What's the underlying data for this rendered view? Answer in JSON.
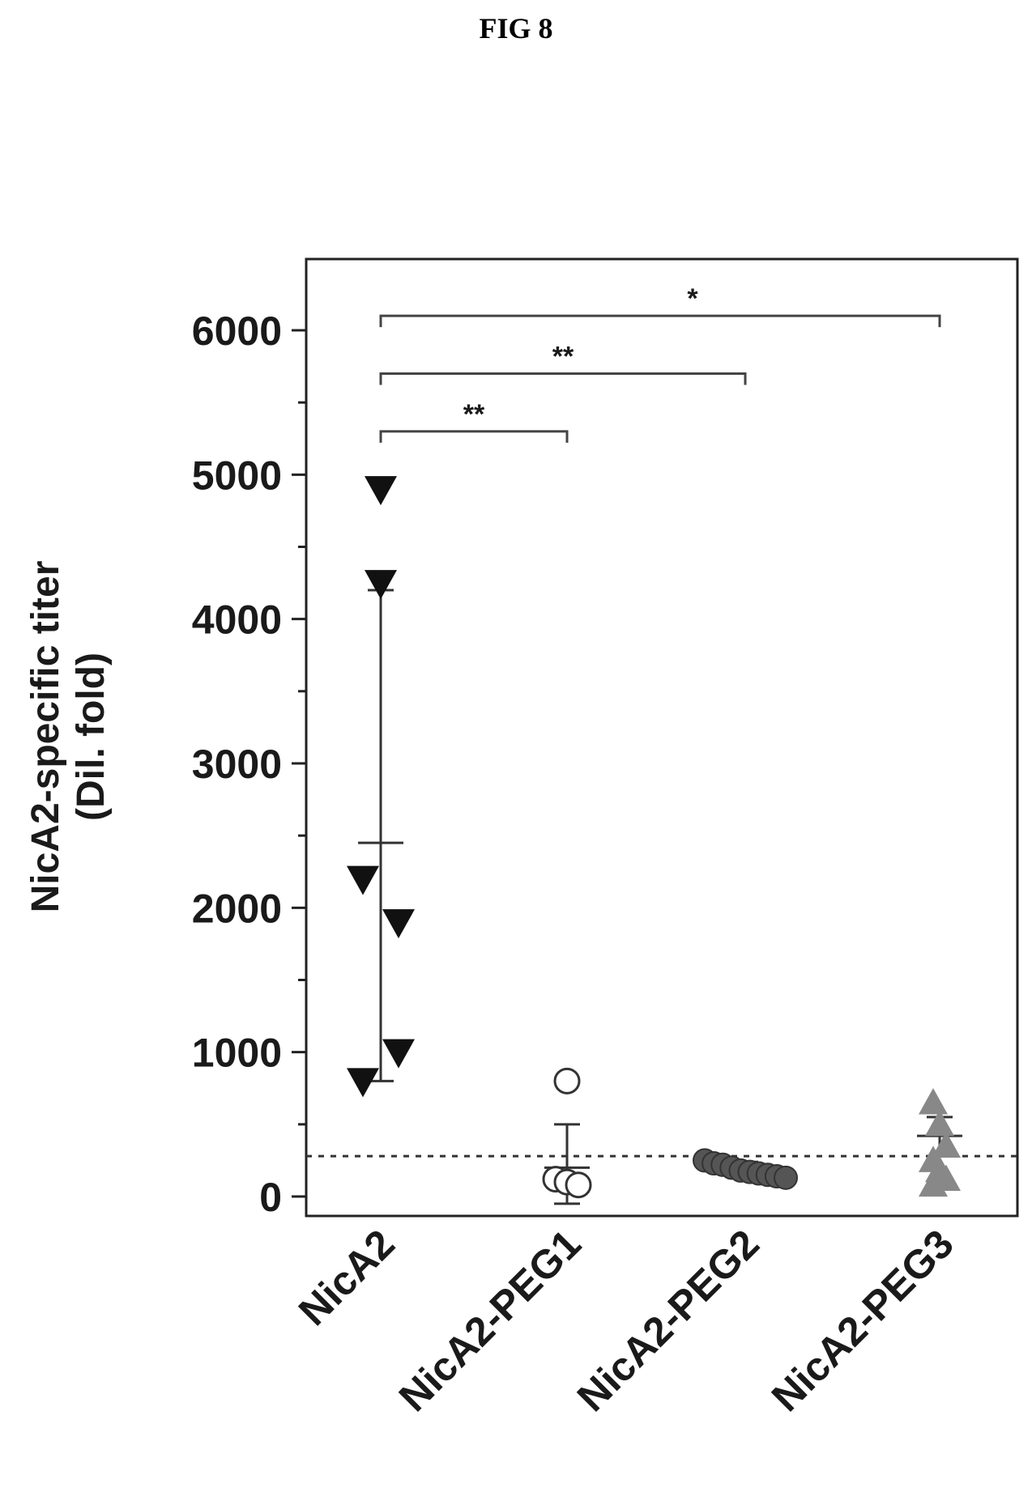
{
  "figure_label": "FIG 8",
  "chart_data": {
    "type": "scatter",
    "title": "",
    "ylabel_line1": "NicA2-specific titer",
    "ylabel_line2": "(Dil. fold)",
    "xlabel": "",
    "ylim": [
      -100,
      6500
    ],
    "yticks": [
      0,
      1000,
      2000,
      3000,
      4000,
      5000,
      6000
    ],
    "ytick_labels": [
      "0",
      "1000",
      "2000",
      "3000",
      "4000",
      "5000",
      "6000"
    ],
    "categories": [
      "NicA2",
      "NicA2-PEG1",
      "NicA2-PEG2",
      "NicA2-PEG3"
    ],
    "threshold_line": 280,
    "groups": [
      {
        "name": "NicA2",
        "marker": "triangle-down",
        "points": [
          4900,
          4250,
          2200,
          1900,
          1000,
          800
        ],
        "mean": 2450,
        "error_low": 800,
        "error_high": 4200
      },
      {
        "name": "NicA2-PEG1",
        "marker": "circle-open",
        "points": [
          800,
          120,
          100,
          80
        ],
        "mean": 200,
        "error_low": -50,
        "error_high": 500
      },
      {
        "name": "NicA2-PEG2",
        "marker": "circle-filled",
        "points": [
          250,
          230,
          220,
          200,
          180,
          170,
          160,
          150,
          140,
          130
        ],
        "mean": 180,
        "error_low": 130,
        "error_high": 240
      },
      {
        "name": "NicA2-PEG3",
        "marker": "triangle-up",
        "points": [
          650,
          500,
          350,
          250,
          180,
          120,
          80
        ],
        "mean": 420,
        "error_low": 280,
        "error_high": 550
      }
    ],
    "comparisons": [
      {
        "from": "NicA2",
        "to": "NicA2-PEG1",
        "label": "**",
        "y": 5300
      },
      {
        "from": "NicA2",
        "to": "NicA2-PEG2",
        "label": "**",
        "y": 5700
      },
      {
        "from": "NicA2",
        "to": "NicA2-PEG3",
        "label": "*",
        "y": 6100
      }
    ],
    "grid": false
  }
}
